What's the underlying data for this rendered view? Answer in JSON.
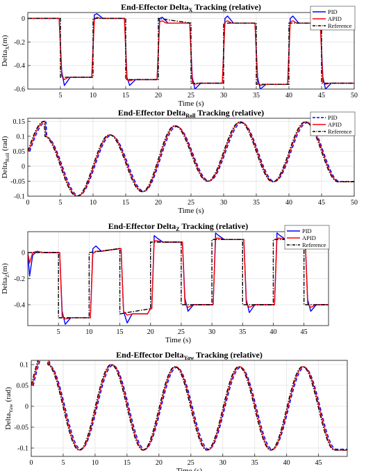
{
  "colors": {
    "pid": "#0000ff",
    "apid": "#ff0000",
    "reference": "#000000"
  },
  "chart_data": [
    {
      "type": "line",
      "title": {
        "pre": "End-Effector  Delta",
        "sub": "X",
        "post": "  Tracking  (relative)"
      },
      "xlabel": "Time (s)",
      "ylabel": {
        "pre": "Delta",
        "sub": "X",
        "post": "(m)"
      },
      "xlim": [
        0,
        50
      ],
      "ylim": [
        -0.6,
        0.05
      ],
      "xticks": [
        5,
        10,
        15,
        20,
        25,
        30,
        35,
        40,
        45,
        50
      ],
      "yticks": [
        0,
        -0.2,
        -0.4,
        -0.6
      ],
      "ytick_labels": [
        "0",
        "-0.2",
        "-0.4",
        "-0.6"
      ],
      "grid": true,
      "legend": "top-right",
      "legend_style": "solid",
      "legend_entries": [
        "PID",
        "APID",
        "Reference"
      ],
      "steps": {
        "t0": 0,
        "period": 5,
        "start_levels": [
          0,
          -0.5,
          0,
          -0.52,
          0,
          -0.55,
          -0.04,
          -0.56,
          -0.04,
          -0.55
        ],
        "end_levels": [
          0,
          -0.5,
          0,
          -0.52,
          -0.04,
          -0.55,
          -0.04,
          -0.56,
          -0.04,
          -0.55
        ]
      },
      "series": [
        {
          "name": "PID",
          "t": [
            0,
            4.8,
            5.2,
            5.6,
            6.5,
            9.8,
            10.2,
            10.6,
            11.5,
            14.8,
            15.2,
            15.6,
            16.5,
            19.8,
            20.2,
            20.6,
            21.5,
            24.8,
            25.2,
            25.6,
            26.5,
            29.8,
            30.2,
            30.6,
            31.5,
            34.8,
            35.2,
            35.6,
            36.5,
            39.8,
            40.2,
            40.6,
            41.5,
            44.8,
            45.2,
            45.6,
            46.5,
            50
          ],
          "y": [
            0,
            0,
            -0.45,
            -0.57,
            -0.5,
            -0.5,
            0.03,
            0.04,
            0,
            0,
            -0.5,
            -0.57,
            -0.52,
            -0.52,
            0,
            0.01,
            -0.04,
            -0.04,
            -0.5,
            -0.6,
            -0.55,
            -0.55,
            0,
            0.02,
            -0.04,
            -0.04,
            -0.5,
            -0.6,
            -0.56,
            -0.56,
            0,
            0.02,
            -0.04,
            -0.04,
            -0.5,
            -0.6,
            -0.55,
            -0.55
          ]
        },
        {
          "name": "APID",
          "t": [
            0,
            4.8,
            5.2,
            5.6,
            6.2,
            9.8,
            10.2,
            10.6,
            11.2,
            14.8,
            15.2,
            15.6,
            16.2,
            19.8,
            20.2,
            20.6,
            21.2,
            24.8,
            25.2,
            25.6,
            26.2,
            29.8,
            30.2,
            30.6,
            31.2,
            34.8,
            35.2,
            35.6,
            36.2,
            39.8,
            40.2,
            40.6,
            41.2,
            44.8,
            45.2,
            45.6,
            46.2,
            50
          ],
          "y": [
            0,
            0,
            -0.49,
            -0.52,
            -0.5,
            -0.5,
            -0.01,
            0.01,
            0,
            0,
            -0.52,
            -0.53,
            -0.52,
            -0.52,
            -0.03,
            -0.02,
            -0.04,
            -0.04,
            -0.54,
            -0.56,
            -0.55,
            -0.55,
            -0.03,
            -0.02,
            -0.04,
            -0.04,
            -0.55,
            -0.57,
            -0.56,
            -0.56,
            -0.03,
            -0.02,
            -0.04,
            -0.04,
            -0.54,
            -0.56,
            -0.55,
            -0.55
          ]
        }
      ]
    },
    {
      "type": "line",
      "title": {
        "pre": "End-Effector  Delta",
        "sub": "Roll",
        "post": "  Tracking  (relative)"
      },
      "xlabel": "Time (s)",
      "ylabel": {
        "pre": "Delta",
        "sub": "Roll",
        "post": " (rad)"
      },
      "xlim": [
        0,
        50
      ],
      "ylim": [
        -0.1,
        0.16
      ],
      "xticks": [
        0,
        5,
        10,
        15,
        20,
        25,
        30,
        35,
        40,
        45,
        50
      ],
      "yticks": [
        0.15,
        0.1,
        0.05,
        0,
        -0.05,
        -0.1
      ],
      "ytick_labels": [
        "0.15",
        "0.1",
        "0.05",
        "0",
        "-0.05",
        "-0.1"
      ],
      "grid": true,
      "legend": "top-right",
      "legend_style": "dashed",
      "legend_entries": [
        "PID",
        "APID",
        "Reference"
      ],
      "wave": {
        "period": 10,
        "phase_peak": 2.5,
        "peaks": [
          0.1,
          0.105,
          0.135,
          0.148,
          0.148
        ],
        "troughs": [
          -0.1,
          -0.085,
          -0.05,
          -0.052,
          -0.052
        ]
      }
    },
    {
      "type": "line",
      "title": {
        "pre": "End-Effector  Delta",
        "sub": "Z",
        "post": "  Tracking  (relative)"
      },
      "xlabel": "Time (s)",
      "ylabel": {
        "pre": "Delta",
        "sub": "Z",
        "post": "(m)"
      },
      "xlim": [
        0,
        49
      ],
      "ylim": [
        -0.56,
        0.16
      ],
      "xticks": [
        5,
        10,
        15,
        20,
        25,
        30,
        35,
        40,
        45
      ],
      "yticks": [
        0,
        -0.2,
        -0.4
      ],
      "ytick_labels": [
        "0",
        "-0.2",
        "-0.4"
      ],
      "grid": true,
      "legend": "top-right",
      "legend_style": "solid",
      "legend_entries": [
        "PID",
        "APID",
        "Reference"
      ],
      "steps": {
        "t0": 0,
        "period": 5,
        "start_levels": [
          0,
          -0.5,
          0,
          -0.47,
          0.08,
          -0.4,
          0.1,
          -0.4,
          0.1,
          -0.4
        ],
        "end_levels": [
          0,
          -0.5,
          0.03,
          -0.43,
          0.08,
          -0.4,
          0.1,
          -0.4,
          0.1,
          -0.4
        ]
      },
      "series": [
        {
          "name": "PID",
          "t": [
            0,
            0.3,
            0.8,
            1.5,
            2.5,
            5.2,
            5.6,
            6.1,
            7,
            10.2,
            10.6,
            11.1,
            12,
            14.9,
            15.2,
            15.6,
            16.2,
            17,
            19.5,
            20,
            20.2,
            20.6,
            21.1,
            22,
            25.2,
            25.6,
            26.1,
            27,
            30.2,
            30.6,
            31.1,
            32,
            35.2,
            35.6,
            36.1,
            37,
            40.2,
            40.6,
            41.1,
            42,
            45.2,
            45.6,
            46.1,
            47,
            49
          ],
          "y": [
            0,
            -0.18,
            -0.02,
            0.01,
            0,
            0,
            -0.45,
            -0.55,
            -0.5,
            -0.5,
            0.03,
            0.05,
            0.01,
            0.03,
            0.03,
            -0.45,
            -0.54,
            -0.47,
            -0.47,
            -0.43,
            -0.43,
            0.13,
            0.11,
            0.08,
            0.08,
            -0.35,
            -0.45,
            -0.4,
            -0.4,
            0.15,
            0.13,
            0.1,
            0.1,
            -0.36,
            -0.46,
            -0.4,
            -0.4,
            0.15,
            0.13,
            0.1,
            0.1,
            -0.36,
            -0.45,
            -0.4,
            -0.4
          ]
        },
        {
          "name": "APID",
          "t": [
            0,
            0.3,
            0.8,
            1.5,
            2.5,
            5.2,
            5.6,
            6.1,
            7,
            10.2,
            10.6,
            11.1,
            12,
            14.9,
            15.2,
            15.6,
            16.2,
            17,
            19.5,
            20,
            20.2,
            20.6,
            21.1,
            22,
            25.2,
            25.6,
            26.1,
            27,
            30.2,
            30.6,
            31.1,
            32,
            35.2,
            35.6,
            36.1,
            37,
            40.2,
            40.6,
            41.1,
            42,
            45.2,
            45.6,
            46.1,
            47,
            49
          ],
          "y": [
            0,
            -0.08,
            0,
            0.01,
            0,
            0,
            -0.49,
            -0.51,
            -0.5,
            -0.5,
            -0.01,
            0.01,
            0.01,
            0.03,
            0.03,
            -0.45,
            -0.48,
            -0.47,
            -0.47,
            -0.43,
            -0.43,
            0.09,
            0.09,
            0.08,
            0.08,
            -0.39,
            -0.42,
            -0.4,
            -0.4,
            0.11,
            0.11,
            0.1,
            0.1,
            -0.39,
            -0.42,
            -0.4,
            -0.4,
            0.11,
            0.11,
            0.1,
            0.1,
            -0.39,
            -0.42,
            -0.4,
            -0.4
          ]
        }
      ]
    },
    {
      "type": "line",
      "title": {
        "pre": "End-Effector  Delta",
        "sub": "Yaw",
        "post": "  Tracking  (relative)"
      },
      "xlabel": "Time (s)",
      "ylabel": {
        "pre": "Delta",
        "sub": "Yaw",
        "post": " (rad)"
      },
      "xlim": [
        0,
        49.5
      ],
      "ylim": [
        -0.12,
        0.11
      ],
      "xticks": [
        0,
        5,
        10,
        15,
        20,
        25,
        30,
        35,
        40,
        45
      ],
      "yticks": [
        0.1,
        0.05,
        0,
        -0.05,
        -0.1
      ],
      "ytick_labels": [
        "0.1",
        "0.05",
        "0",
        "-0.05",
        "-0.1"
      ],
      "grid": true,
      "legend": "none",
      "wave": {
        "period": 10,
        "phase_peak": 2.5,
        "peaks": [
          0.1,
          0.1,
          0.095,
          0.095,
          0.095
        ],
        "troughs": [
          -0.105,
          -0.105,
          -0.105,
          -0.105,
          -0.105
        ]
      }
    }
  ]
}
